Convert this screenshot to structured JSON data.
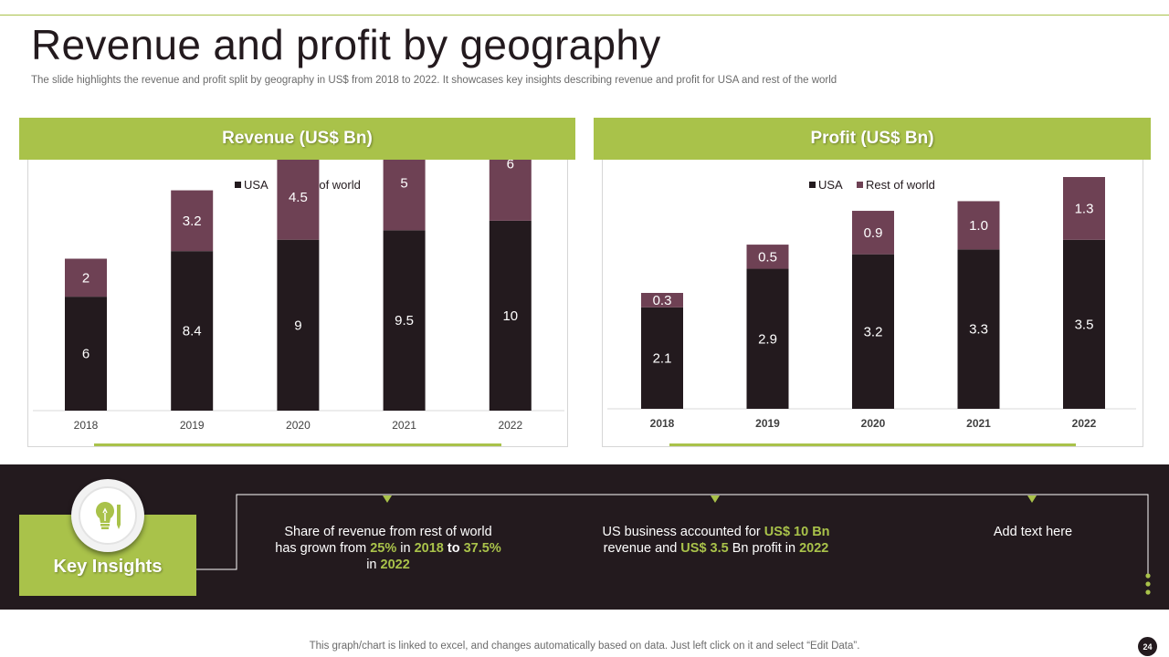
{
  "title": "Revenue and profit by geography",
  "subtitle": "The slide highlights the revenue and profit split by geography in US$ from 2018 to 2022. It showcases key insights describing revenue and profit for USA and rest of the world",
  "colors": {
    "accent": "#a9c24a",
    "dark": "#231a1e",
    "usa": "#231a1e",
    "row": "#6e4154"
  },
  "revenue_header": "Revenue (US$ Bn)",
  "profit_header": "Profit (US$ Bn)",
  "chart_data": [
    {
      "type": "bar",
      "stacked": true,
      "title": "Revenue (US$ Bn)",
      "categories": [
        "2018",
        "2019",
        "2020",
        "2021",
        "2022"
      ],
      "series": [
        {
          "name": "USA",
          "values": [
            6,
            8.4,
            9,
            9.5,
            10
          ],
          "labels": [
            "6",
            "8.4",
            "9",
            "9.5",
            "10"
          ]
        },
        {
          "name": "Rest of world",
          "values": [
            2,
            3.2,
            4.5,
            5,
            6
          ],
          "labels": [
            "2",
            "3.2",
            "4.5",
            "5",
            "6"
          ]
        }
      ],
      "ylim": [
        0,
        16
      ],
      "legend": "top-center",
      "grid": false
    },
    {
      "type": "bar",
      "stacked": true,
      "title": "Profit (US$ Bn)",
      "categories": [
        "2018",
        "2019",
        "2020",
        "2021",
        "2022"
      ],
      "series": [
        {
          "name": "USA",
          "values": [
            2.1,
            2.9,
            3.2,
            3.3,
            3.5
          ],
          "labels": [
            "2.1",
            "2.9",
            "3.2",
            "3.3",
            "3.5"
          ]
        },
        {
          "name": "Rest of world",
          "values": [
            0.3,
            0.5,
            0.9,
            1.0,
            1.3
          ],
          "labels": [
            "0.3",
            "0.5",
            "0.9",
            "1.0",
            "1.3"
          ]
        }
      ],
      "ylim": [
        0,
        4.8
      ],
      "legend": "top-center",
      "grid": false
    }
  ],
  "key_insights": {
    "title": "Key Insights",
    "icon": "lightbulb-pencil-icon",
    "items": [
      [
        {
          "t": "Share of revenue from rest of world has grown from "
        },
        {
          "t": "25%",
          "hl": true
        },
        {
          "t": " in "
        },
        {
          "t": "2018",
          "hl": true
        },
        {
          "t": " "
        },
        {
          "t": "to",
          "hl": false,
          "bold": true
        },
        {
          "t": " "
        },
        {
          "t": "37.5%",
          "hl": true
        },
        {
          "t": " in "
        },
        {
          "t": "2022",
          "hl": true
        }
      ],
      [
        {
          "t": "US business accounted for "
        },
        {
          "t": "US$ 10 Bn",
          "hl": true
        },
        {
          "t": " revenue and "
        },
        {
          "t": "US$ 3.5",
          "hl": true
        },
        {
          "t": " Bn profit in "
        },
        {
          "t": "2022",
          "hl": true
        }
      ],
      [
        {
          "t": "Add text here"
        }
      ]
    ]
  },
  "footer_note": "This graph/chart is linked to excel,  and changes automatically based on data. Just left click on it and select “Edit Data”.",
  "page_number": "24"
}
